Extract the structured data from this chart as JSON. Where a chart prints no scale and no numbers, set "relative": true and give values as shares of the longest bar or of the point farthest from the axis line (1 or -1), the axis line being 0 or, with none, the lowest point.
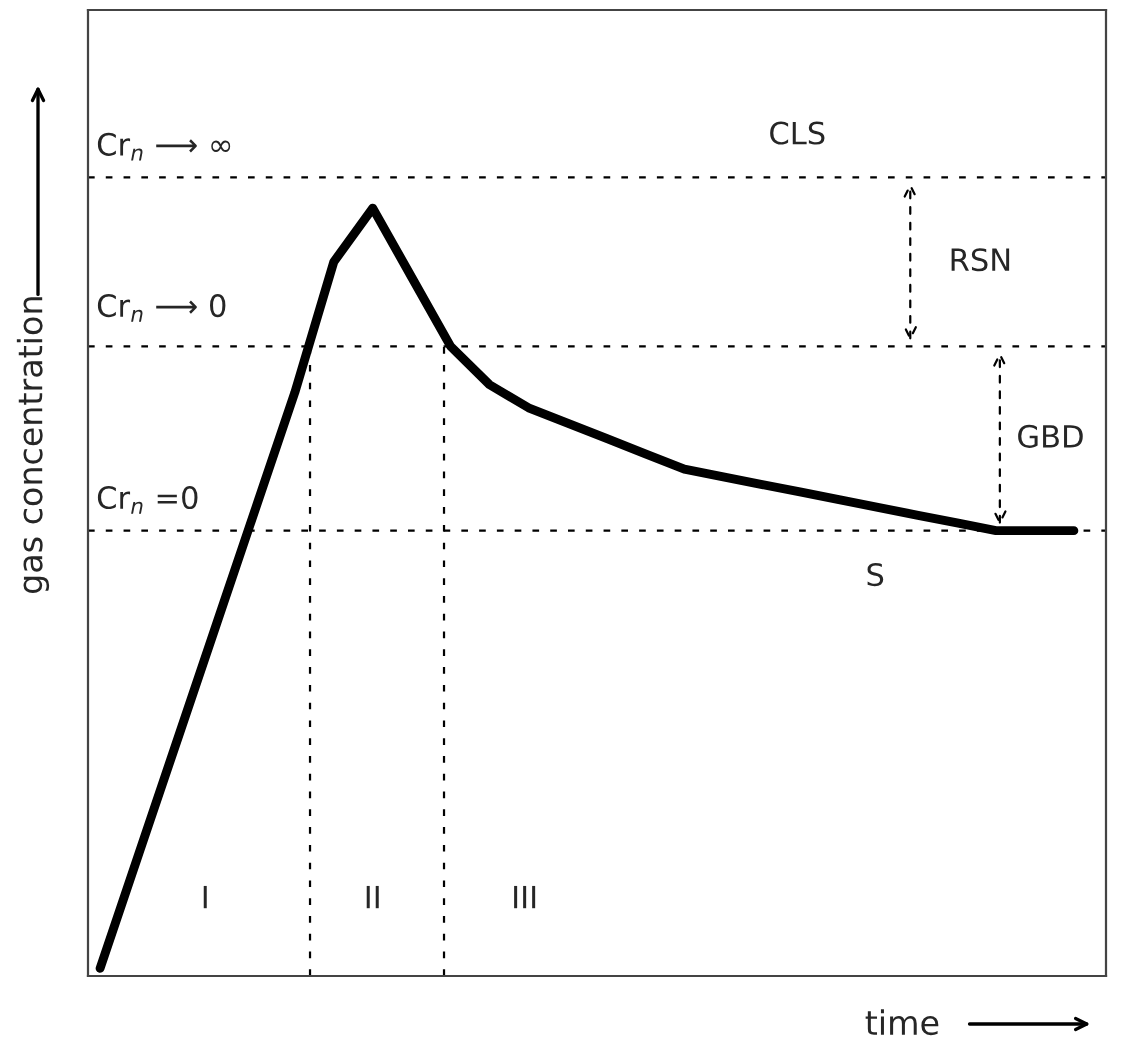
{
  "chart_data": {
    "type": "line",
    "relative": true,
    "xlabel": "time",
    "ylabel": "gas concentration",
    "categories": [
      null,
      null,
      null,
      null,
      null,
      null,
      null,
      null,
      null,
      null,
      null,
      null,
      null,
      null,
      null,
      null,
      null,
      null,
      null,
      null,
      null,
      null,
      null,
      null,
      null,
      null
    ],
    "series": [
      {
        "color": "#000000",
        "values": [
          0.01,
          0.16,
          0.31,
          0.46,
          0.61,
          0.76,
          0.93,
          1.0,
          0.91,
          0.82,
          0.77,
          0.74,
          0.72,
          0.7,
          0.68,
          0.66,
          0.65,
          0.64,
          0.63,
          0.62,
          0.61,
          0.6,
          0.59,
          0.58,
          0.58,
          0.58
        ]
      }
    ],
    "line_style": "solid",
    "marker": "none",
    "grid": false,
    "legend": false,
    "tick_labels": false,
    "ref_lines": [
      {
        "axis": "y",
        "value": 1.04,
        "label": "CLS",
        "line_style": "dashed",
        "color": "#000000"
      },
      {
        "axis": "y",
        "value": 0.82,
        "line_style": "dashed",
        "color": "#000000"
      },
      {
        "axis": "y",
        "value": 0.58,
        "label": "S",
        "line_style": "dashed",
        "color": "#000000"
      }
    ],
    "annotations": [
      "Cr$_{n}$ ⟶ ∞",
      "Cr$_{n}$ ⟶ 0",
      "Cr$_{n}$ =0",
      "RSN",
      "GBD",
      "I",
      "II",
      "III"
    ]
  }
}
